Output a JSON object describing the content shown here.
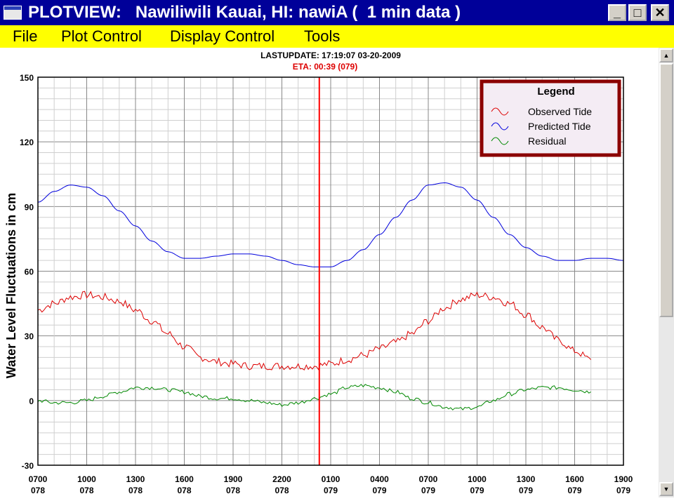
{
  "window": {
    "title": "PLOTVIEW:   Nawiliwili Kauai, HI: nawiA (  1 min data )",
    "buttons": {
      "minimize": "_",
      "maximize": "□",
      "close": "✕"
    }
  },
  "menu": {
    "items": [
      "File",
      "Plot Control",
      "Display Control",
      "Tools"
    ]
  },
  "plot": {
    "last_update": "LASTUPDATE: 17:19:07  03-20-2009",
    "eta": "ETA: 00:39 (079)",
    "ylabel": "Water Level Fluctuations in cm",
    "legend_title": "Legend",
    "colors": {
      "observed": "#dd0000",
      "predicted": "#0000dd",
      "residual": "#008800",
      "eta_line": "#ff0000",
      "legend_border": "#8b0000"
    }
  },
  "chart_data": {
    "type": "line",
    "ylim": [
      -30,
      150
    ],
    "yticks": [
      "150",
      "120",
      "90",
      "60",
      "30",
      "0",
      "-30"
    ],
    "xticks": [
      {
        "time": "0700",
        "day": "078"
      },
      {
        "time": "1000",
        "day": "078"
      },
      {
        "time": "1300",
        "day": "078"
      },
      {
        "time": "1600",
        "day": "078"
      },
      {
        "time": "1900",
        "day": "078"
      },
      {
        "time": "2200",
        "day": "078"
      },
      {
        "time": "0100",
        "day": "079"
      },
      {
        "time": "0400",
        "day": "079"
      },
      {
        "time": "0700",
        "day": "079"
      },
      {
        "time": "1000",
        "day": "079"
      },
      {
        "time": "1300",
        "day": "079"
      },
      {
        "time": "1600",
        "day": "079"
      },
      {
        "time": "1900",
        "day": "079"
      }
    ],
    "x_hours_range": [
      0,
      36
    ],
    "eta_hour": 17.3,
    "series": [
      {
        "name": "Observed Tide",
        "color": "#dd0000",
        "noise": 1.8,
        "x": [
          0,
          1,
          2,
          3,
          4,
          5,
          6,
          7,
          8,
          9,
          10,
          11,
          12,
          13,
          14,
          15,
          16,
          17,
          18,
          19,
          20,
          21,
          22,
          23,
          24,
          25,
          26,
          27,
          28,
          29,
          30,
          31,
          32,
          33,
          34
        ],
        "y": [
          42,
          45,
          48,
          49,
          48,
          46,
          42,
          37,
          31,
          25,
          20,
          18,
          17,
          16,
          16,
          16,
          16,
          16,
          17,
          19,
          21,
          24,
          27,
          31,
          37,
          43,
          47,
          49,
          48,
          45,
          40,
          34,
          28,
          23,
          19
        ]
      },
      {
        "name": "Predicted Tide",
        "color": "#0000dd",
        "noise": 0,
        "x": [
          0,
          1,
          2,
          3,
          4,
          5,
          6,
          7,
          8,
          9,
          10,
          11,
          12,
          13,
          14,
          15,
          16,
          17,
          18,
          19,
          20,
          21,
          22,
          23,
          24,
          25,
          26,
          27,
          28,
          29,
          30,
          31,
          32,
          33,
          34,
          35,
          36
        ],
        "y": [
          92,
          97,
          100,
          99,
          95,
          88,
          81,
          74,
          69,
          66,
          66,
          67,
          68,
          68,
          67,
          65,
          63,
          62,
          62,
          65,
          70,
          77,
          85,
          93,
          100,
          101,
          99,
          93,
          85,
          77,
          71,
          67,
          65,
          65,
          66,
          66,
          65
        ]
      },
      {
        "name": "Residual",
        "color": "#008800",
        "noise": 0.9,
        "x": [
          0,
          1,
          2,
          3,
          4,
          5,
          6,
          7,
          8,
          9,
          10,
          11,
          12,
          13,
          14,
          15,
          16,
          17,
          18,
          19,
          20,
          21,
          22,
          23,
          24,
          25,
          26,
          27,
          28,
          29,
          30,
          31,
          32,
          33,
          34
        ],
        "y": [
          0,
          -1,
          -1,
          0,
          2,
          4,
          6,
          6,
          5,
          4,
          2,
          1,
          1,
          0,
          -1,
          -2,
          -1,
          1,
          3,
          6,
          7,
          6,
          4,
          1,
          -1,
          -3,
          -4,
          -3,
          0,
          3,
          5,
          6,
          6,
          5,
          4
        ]
      }
    ]
  }
}
